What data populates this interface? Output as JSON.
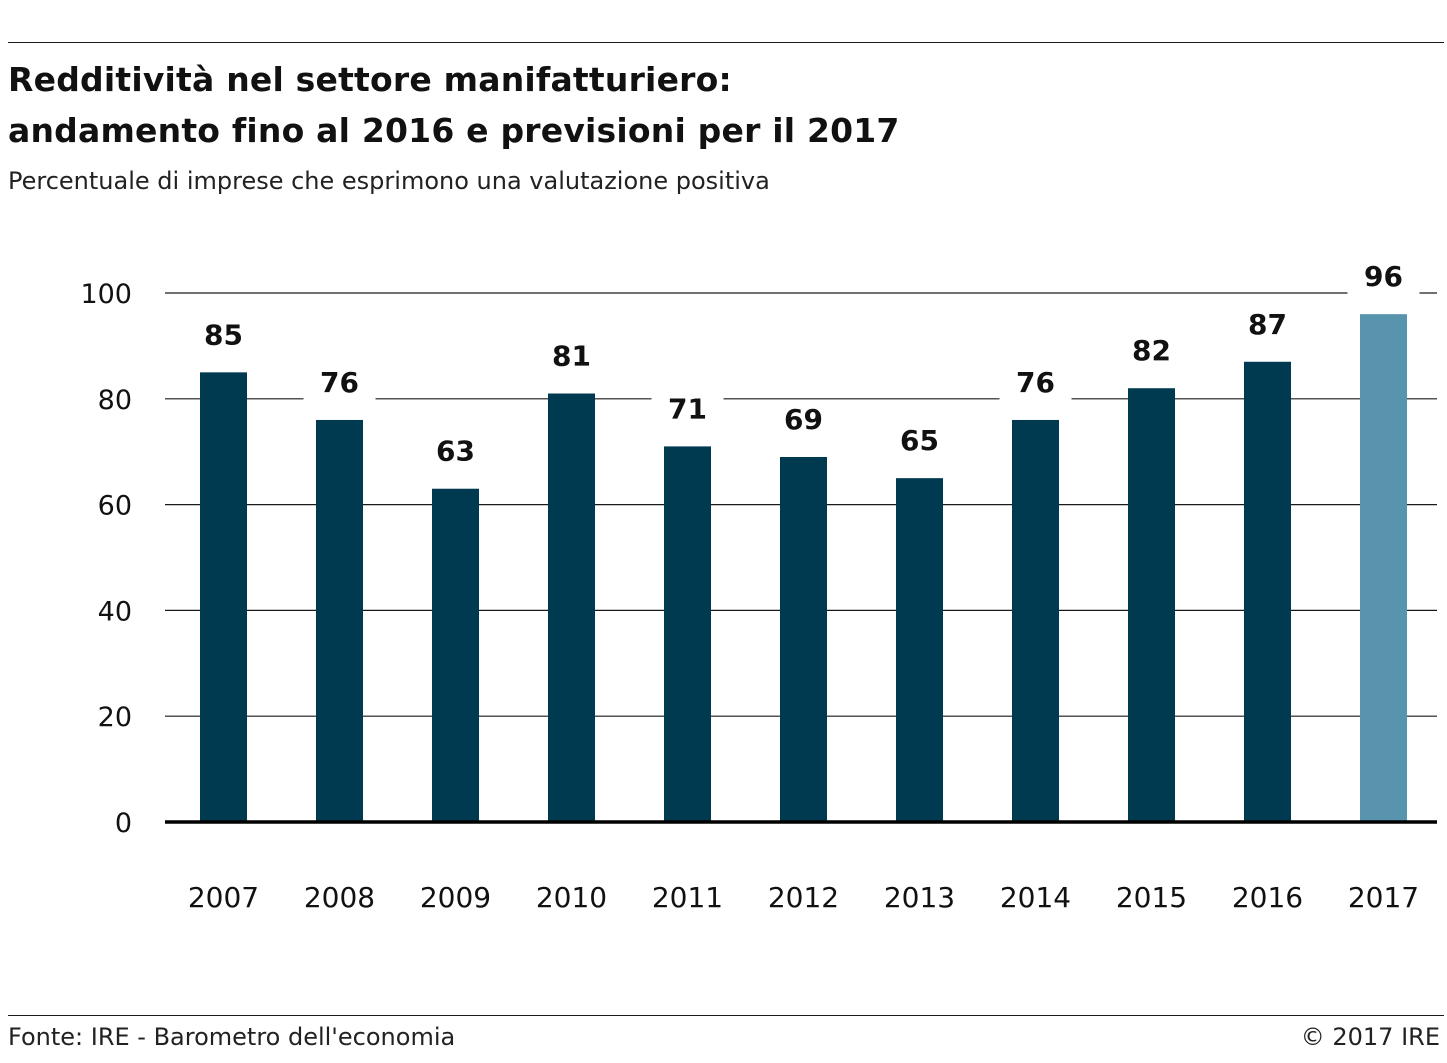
{
  "header": {
    "title_line1": "Redditività nel settore manifatturiero:",
    "title_line2": "andamento fino al 2016 e previsioni per il 2017",
    "subtitle": "Percentuale di imprese che esprimono una valutazione positiva"
  },
  "footer": {
    "source": "Fonte: IRE - Barometro dell'economia",
    "copyright": "© 2017 IRE"
  },
  "colors": {
    "historical_bar": "#003a50",
    "forecast_bar": "#5994ae",
    "gridline": "#1a1a1a",
    "baseline": "#000000",
    "text": "#111111"
  },
  "chart_data": {
    "type": "bar",
    "title": "Redditività nel settore manifatturiero: andamento fino al 2016 e previsioni per il 2017",
    "subtitle": "Percentuale di imprese che esprimono una valutazione positiva",
    "xlabel": "",
    "ylabel": "",
    "categories": [
      "2007",
      "2008",
      "2009",
      "2010",
      "2011",
      "2012",
      "2013",
      "2014",
      "2015",
      "2016",
      "2017"
    ],
    "values": [
      85,
      76,
      63,
      81,
      71,
      69,
      65,
      76,
      82,
      87,
      96
    ],
    "data_labels": [
      "85",
      "76",
      "63",
      "81",
      "71",
      "69",
      "65",
      "76",
      "82",
      "87",
      "96"
    ],
    "forecast": [
      false,
      false,
      false,
      false,
      false,
      false,
      false,
      false,
      false,
      false,
      true
    ],
    "ylim": [
      0,
      100
    ],
    "yticks": [
      0,
      20,
      40,
      60,
      80,
      100
    ],
    "ytick_labels": [
      "0",
      "20",
      "40",
      "60",
      "80",
      "100"
    ],
    "grid": true,
    "legend": "none"
  }
}
